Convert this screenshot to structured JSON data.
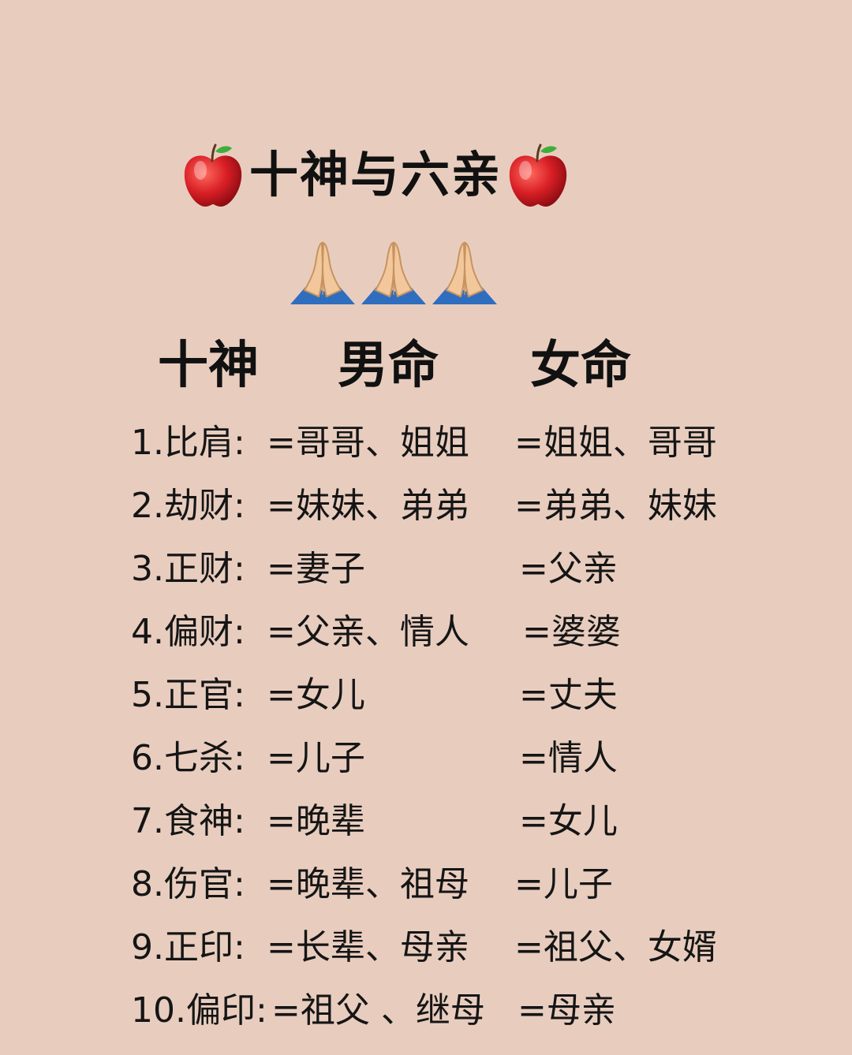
{
  "title": "十神与六亲",
  "icons": {
    "title_decoration": "red-apple-icon",
    "hands": "folded-hands-icon"
  },
  "header": {
    "col_shishen": "十神",
    "col_male": "男命",
    "col_female": "女命"
  },
  "rows": [
    {
      "god": "1.比肩:",
      "male": "=哥哥、姐姐",
      "female": "=姐姐、哥哥"
    },
    {
      "god": "2.劫财:",
      "male": "=妹妹、弟弟",
      "female": "=弟弟、妹妹"
    },
    {
      "god": "3.正财:",
      "male": "=妻子",
      "female": "=父亲"
    },
    {
      "god": "4.偏财:",
      "male": "=父亲、情人",
      "female": "=婆婆"
    },
    {
      "god": "5.正官:",
      "male": "=女儿",
      "female": "=丈夫"
    },
    {
      "god": "6.七杀:",
      "male": "=儿子",
      "female": "=情人"
    },
    {
      "god": "7.食神:",
      "male": "=晚辈",
      "female": "=女儿"
    },
    {
      "god": "8.伤官:",
      "male": "=晚辈、祖母",
      "female": "=儿子"
    },
    {
      "god": "9.正印:",
      "male": "=长辈、母亲",
      "female": "=祖父、女婿"
    },
    {
      "god": "10.偏印:",
      "male": "=祖父 、继母",
      "female": "=母亲"
    }
  ],
  "colors": {
    "background": "#e8cdbf",
    "text": "#111111",
    "apple_red": "#d91f26",
    "sleeve_blue": "#2f6dbf"
  }
}
